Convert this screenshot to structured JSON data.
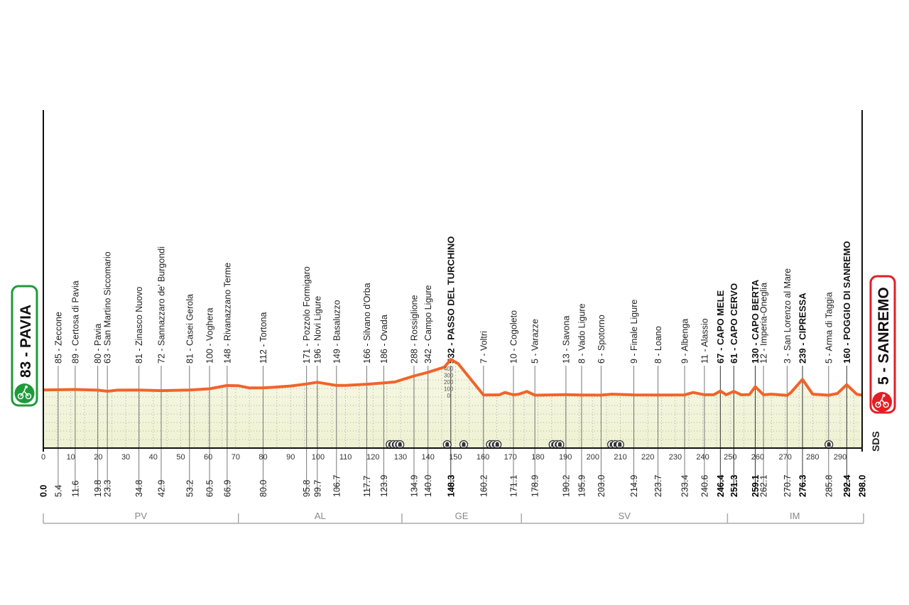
{
  "chart_data": {
    "type": "area",
    "x_unit": "km",
    "y_unit": "m",
    "xlim": [
      0,
      298
    ],
    "x_ticks": [
      0,
      10,
      20,
      30,
      40,
      50,
      60,
      70,
      80,
      90,
      100,
      110,
      120,
      130,
      140,
      150,
      160,
      170,
      180,
      190,
      200,
      210,
      220,
      230,
      240,
      250,
      260,
      270,
      280,
      290
    ],
    "elevation_scale_ticks": [
      0,
      100,
      200,
      300,
      400
    ],
    "start": {
      "label": "83 - PAVIA",
      "km": "0.0",
      "color": "#1f9a3a"
    },
    "finish": {
      "label": "5 - SANREMO",
      "km": "298.0",
      "color": "#e31e24"
    },
    "line_color": "#f0642a",
    "waypoints": [
      {
        "km": 5.4,
        "km_label": "5.4",
        "elev": 85,
        "label": "85 - Zeccone",
        "bold": false
      },
      {
        "km": 11.6,
        "km_label": "11.6",
        "elev": 89,
        "label": "89 - Certosa di Pavia",
        "bold": false
      },
      {
        "km": 19.8,
        "km_label": "19.8",
        "elev": 80,
        "label": "80 - Pavia",
        "bold": false
      },
      {
        "km": 23.3,
        "km_label": "23.3",
        "elev": 63,
        "label": "63 - San Martino Siccomario",
        "bold": false
      },
      {
        "km": 34.8,
        "km_label": "34.8",
        "elev": 81,
        "label": "81 - Zinasco Nuovo",
        "bold": false
      },
      {
        "km": 42.9,
        "km_label": "42.9",
        "elev": 72,
        "label": "72 - Sannazzaro de' Burgondi",
        "bold": false
      },
      {
        "km": 53.2,
        "km_label": "53.2",
        "elev": 81,
        "label": "81 - Casei Gerola",
        "bold": false
      },
      {
        "km": 60.5,
        "km_label": "60.5",
        "elev": 100,
        "label": "100 - Voghera",
        "bold": false
      },
      {
        "km": 66.9,
        "km_label": "66.9",
        "elev": 148,
        "label": "148 - Rivanazzano Terme",
        "bold": false
      },
      {
        "km": 80.0,
        "km_label": "80.0",
        "elev": 112,
        "label": "112 - Tortona",
        "bold": false
      },
      {
        "km": 95.8,
        "km_label": "95.8",
        "elev": 171,
        "label": "171 - Pozzolo Formigaro",
        "bold": false
      },
      {
        "km": 99.7,
        "km_label": "99.7",
        "elev": 196,
        "label": "196 - Novi Ligure",
        "bold": false
      },
      {
        "km": 106.7,
        "km_label": "106.7",
        "elev": 149,
        "label": "149 - Basaluzzo",
        "bold": false
      },
      {
        "km": 117.7,
        "km_label": "117.7",
        "elev": 166,
        "label": "166 - Silvano d'Orba",
        "bold": false
      },
      {
        "km": 123.9,
        "km_label": "123.9",
        "elev": 186,
        "label": "186 - Ovada",
        "bold": false
      },
      {
        "km": 134.9,
        "km_label": "134.9",
        "elev": 288,
        "label": "288 - Rossiglione",
        "bold": false
      },
      {
        "km": 140.0,
        "km_label": "140.0",
        "elev": 342,
        "label": "342 - Campo Ligure",
        "bold": false
      },
      {
        "km": 148.3,
        "km_label": "148.3",
        "elev": 532,
        "label": "532 - PASSO DEL TURCHINO",
        "bold": true
      },
      {
        "km": 160.2,
        "km_label": "160.2",
        "elev": 7,
        "label": "7 - Voltri",
        "bold": false
      },
      {
        "km": 171.1,
        "km_label": "171.1",
        "elev": 10,
        "label": "10 - Cogoleto",
        "bold": false
      },
      {
        "km": 178.9,
        "km_label": "178.9",
        "elev": 5,
        "label": "5 - Varazze",
        "bold": false
      },
      {
        "km": 190.2,
        "km_label": "190.2",
        "elev": 13,
        "label": "13 - Savona",
        "bold": false
      },
      {
        "km": 195.9,
        "km_label": "195.9",
        "elev": 8,
        "label": "8 - Vado Ligure",
        "bold": false
      },
      {
        "km": 203.0,
        "km_label": "203.0",
        "elev": 6,
        "label": "6 - Spotorno",
        "bold": false
      },
      {
        "km": 214.9,
        "km_label": "214.9",
        "elev": 9,
        "label": "9 - Finale Ligure",
        "bold": false
      },
      {
        "km": 223.7,
        "km_label": "223.7",
        "elev": 8,
        "label": "8 - Loano",
        "bold": false
      },
      {
        "km": 233.4,
        "km_label": "233.4",
        "elev": 9,
        "label": "9 - Albenga",
        "bold": false
      },
      {
        "km": 240.6,
        "km_label": "240.6",
        "elev": 11,
        "label": "11 - Alassio",
        "bold": false
      },
      {
        "km": 246.4,
        "km_label": "246.4",
        "elev": 67,
        "label": "67 - CAPO MELE",
        "bold": true
      },
      {
        "km": 251.3,
        "km_label": "251.3",
        "elev": 61,
        "label": "61 - CAPO CERVO",
        "bold": true
      },
      {
        "km": 259.1,
        "km_label": "259.1",
        "elev": 130,
        "label": "130 - CAPO BERTA",
        "bold": true
      },
      {
        "km": 262.1,
        "km_label": "262.1",
        "elev": 12,
        "label": "12 - Imperia-Oneglia",
        "bold": false
      },
      {
        "km": 270.7,
        "km_label": "270.7",
        "elev": 3,
        "label": "3 - San Lorenzo al Mare",
        "bold": false
      },
      {
        "km": 276.3,
        "km_label": "276.3",
        "elev": 239,
        "label": "239 - CIPRESSA",
        "bold": true
      },
      {
        "km": 285.8,
        "km_label": "285.8",
        "elev": 5,
        "label": "5 - Arma di Taggia",
        "bold": false
      },
      {
        "km": 292.4,
        "km_label": "292.4",
        "elev": 160,
        "label": "160 - POGGIO DI SANREMO",
        "bold": true
      }
    ],
    "profile_shape": [
      [
        0,
        83
      ],
      [
        5.4,
        85
      ],
      [
        11.6,
        89
      ],
      [
        19.8,
        80
      ],
      [
        23.3,
        63
      ],
      [
        27,
        80
      ],
      [
        34.8,
        81
      ],
      [
        42.9,
        72
      ],
      [
        53.2,
        81
      ],
      [
        60.5,
        100
      ],
      [
        66.9,
        148
      ],
      [
        71,
        145
      ],
      [
        75,
        112
      ],
      [
        80,
        112
      ],
      [
        90,
        140
      ],
      [
        95.8,
        171
      ],
      [
        99.7,
        196
      ],
      [
        106.7,
        149
      ],
      [
        110,
        150
      ],
      [
        117.7,
        166
      ],
      [
        123.9,
        186
      ],
      [
        128,
        200
      ],
      [
        131,
        240
      ],
      [
        134.9,
        288
      ],
      [
        140,
        342
      ],
      [
        146,
        420
      ],
      [
        148.3,
        532
      ],
      [
        151,
        470
      ],
      [
        160.2,
        7
      ],
      [
        166,
        10
      ],
      [
        168,
        45
      ],
      [
        171.1,
        10
      ],
      [
        173,
        20
      ],
      [
        176,
        60
      ],
      [
        178.9,
        5
      ],
      [
        190.2,
        13
      ],
      [
        195.9,
        8
      ],
      [
        203,
        6
      ],
      [
        207,
        20
      ],
      [
        214.9,
        9
      ],
      [
        223.7,
        8
      ],
      [
        233.4,
        9
      ],
      [
        236.5,
        45
      ],
      [
        240.6,
        11
      ],
      [
        244,
        12
      ],
      [
        246.4,
        67
      ],
      [
        248.5,
        12
      ],
      [
        251.3,
        61
      ],
      [
        254,
        10
      ],
      [
        257,
        15
      ],
      [
        259.1,
        130
      ],
      [
        262.1,
        12
      ],
      [
        265,
        20
      ],
      [
        270.7,
        3
      ],
      [
        272,
        40
      ],
      [
        276.3,
        239
      ],
      [
        280,
        20
      ],
      [
        285.8,
        5
      ],
      [
        289,
        30
      ],
      [
        292.4,
        160
      ],
      [
        296,
        20
      ],
      [
        298,
        5
      ]
    ],
    "tunnel_markers_km": [
      126.2,
      127.5,
      128.7,
      129.8,
      147.0,
      153.0,
      162.7,
      163.9,
      165.2,
      185.5,
      186.8,
      188.0,
      206.8,
      208.2,
      209.8,
      285.9
    ],
    "provinces": [
      {
        "code": "PV",
        "from": 0,
        "to": 71
      },
      {
        "code": "AL",
        "from": 71,
        "to": 130.5
      },
      {
        "code": "GE",
        "from": 130.5,
        "to": 174
      },
      {
        "code": "SV",
        "from": 174,
        "to": 249
      },
      {
        "code": "IM",
        "from": 249,
        "to": 298
      }
    ],
    "brand": "SDS"
  }
}
